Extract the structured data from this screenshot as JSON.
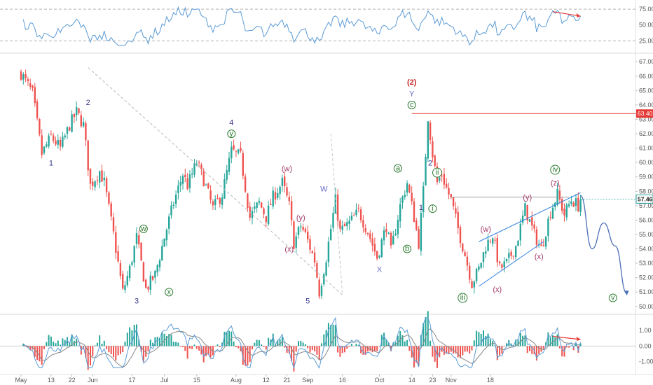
{
  "chart_data": [
    {
      "type": "line",
      "name": "rsi_panel",
      "y_ticks": [
        "75.00",
        "50.00",
        "25.00"
      ],
      "y_tick_values": [
        75,
        50,
        25
      ],
      "ylim": [
        10,
        85
      ],
      "reference_lines": [
        75,
        25
      ],
      "line_color": "#5b9bd5",
      "arrow_color": "#e53935"
    },
    {
      "type": "candlestick",
      "name": "price_panel",
      "ylim": [
        49.6,
        67.4
      ],
      "y_ticks": [
        "67.00",
        "66.00",
        "65.00",
        "64.00",
        "63.00",
        "62.00",
        "61.00",
        "60.00",
        "59.00",
        "58.00",
        "57.00",
        "56.00",
        "55.00",
        "54.00",
        "53.00",
        "52.00",
        "51.00",
        "50.00"
      ],
      "y_tick_values": [
        67,
        66,
        65,
        64,
        63,
        62,
        61,
        60,
        59,
        58,
        57,
        56,
        55,
        54,
        53,
        52,
        51,
        50
      ],
      "current_price_label": "57.46",
      "current_price": 57.46,
      "resistance_label": "63.40",
      "resistance_level": 63.4,
      "up_color": "#26a69a",
      "down_color": "#ef5350",
      "resistance_color": "#e53935",
      "channel_color": "#2f7fe0",
      "projection_color": "#4a6fb5",
      "price_path": [
        {
          "d": 0,
          "p": 66.2
        },
        {
          "d": 5,
          "p": 64.8
        },
        {
          "d": 9,
          "p": 60.6
        },
        {
          "d": 13,
          "p": 61.8
        },
        {
          "d": 17,
          "p": 61.0
        },
        {
          "d": 21,
          "p": 62.6
        },
        {
          "d": 24,
          "p": 63.5
        },
        {
          "d": 27,
          "p": 62.6
        },
        {
          "d": 30,
          "p": 58.4
        },
        {
          "d": 34,
          "p": 59.4
        },
        {
          "d": 36,
          "p": 58.6
        },
        {
          "d": 40,
          "p": 55.0
        },
        {
          "d": 44,
          "p": 51.0
        },
        {
          "d": 47,
          "p": 52.6
        },
        {
          "d": 50,
          "p": 54.8
        },
        {
          "d": 54,
          "p": 51.2
        },
        {
          "d": 58,
          "p": 52.2
        },
        {
          "d": 62,
          "p": 54.8
        },
        {
          "d": 66,
          "p": 57.2
        },
        {
          "d": 70,
          "p": 59.2
        },
        {
          "d": 72,
          "p": 58.4
        },
        {
          "d": 76,
          "p": 60.0
        },
        {
          "d": 79,
          "p": 58.8
        },
        {
          "d": 83,
          "p": 56.8
        },
        {
          "d": 87,
          "p": 57.8
        },
        {
          "d": 91,
          "p": 60.8
        },
        {
          "d": 95,
          "p": 60.4
        },
        {
          "d": 99,
          "p": 56.2
        },
        {
          "d": 103,
          "p": 57.2
        },
        {
          "d": 106,
          "p": 56.2
        },
        {
          "d": 109,
          "p": 57.6
        },
        {
          "d": 113,
          "p": 58.6
        },
        {
          "d": 116,
          "p": 57.0
        },
        {
          "d": 118,
          "p": 54.4
        },
        {
          "d": 121,
          "p": 55.6
        },
        {
          "d": 123,
          "p": 55.0
        },
        {
          "d": 127,
          "p": 53.2
        },
        {
          "d": 129,
          "p": 51.0
        },
        {
          "d": 132,
          "p": 53.4
        },
        {
          "d": 136,
          "p": 57.4
        },
        {
          "d": 138,
          "p": 55.2
        },
        {
          "d": 142,
          "p": 55.8
        },
        {
          "d": 146,
          "p": 56.6
        },
        {
          "d": 150,
          "p": 55.2
        },
        {
          "d": 154,
          "p": 53.4
        },
        {
          "d": 158,
          "p": 55.6
        },
        {
          "d": 160,
          "p": 53.8
        },
        {
          "d": 164,
          "p": 57.0
        },
        {
          "d": 167,
          "p": 58.6
        },
        {
          "d": 170,
          "p": 56.2
        },
        {
          "d": 172,
          "p": 54.4
        },
        {
          "d": 174,
          "p": 58.0
        },
        {
          "d": 176,
          "p": 63.2
        },
        {
          "d": 178,
          "p": 60.6
        },
        {
          "d": 180,
          "p": 58.6
        },
        {
          "d": 182,
          "p": 59.2
        },
        {
          "d": 184,
          "p": 58.2
        },
        {
          "d": 186,
          "p": 57.4
        },
        {
          "d": 189,
          "p": 55.4
        },
        {
          "d": 192,
          "p": 53.6
        },
        {
          "d": 195,
          "p": 51.6
        },
        {
          "d": 198,
          "p": 52.6
        },
        {
          "d": 201,
          "p": 54.2
        },
        {
          "d": 204,
          "p": 55.0
        },
        {
          "d": 207,
          "p": 52.6
        },
        {
          "d": 210,
          "p": 53.0
        },
        {
          "d": 214,
          "p": 54.2
        },
        {
          "d": 218,
          "p": 56.8
        },
        {
          "d": 222,
          "p": 55.0
        },
        {
          "d": 225,
          "p": 54.0
        },
        {
          "d": 229,
          "p": 56.6
        },
        {
          "d": 232,
          "p": 57.8
        },
        {
          "d": 235,
          "p": 56.4
        },
        {
          "d": 238,
          "p": 57.4
        },
        {
          "d": 241,
          "p": 57.0
        },
        {
          "d": 242,
          "p": 57.46
        }
      ],
      "projection_path": [
        {
          "d": 242,
          "p": 57.7
        },
        {
          "d": 247,
          "p": 54.0
        },
        {
          "d": 252,
          "p": 55.8
        },
        {
          "d": 257,
          "p": 54.2
        },
        {
          "d": 262,
          "p": 50.9
        }
      ],
      "channel_lower": [
        {
          "d": 198,
          "p": 51.4
        },
        {
          "d": 226,
          "p": 54.5
        }
      ],
      "channel_upper": [
        {
          "d": 198,
          "p": 54.5
        },
        {
          "d": 242,
          "p": 57.9
        }
      ],
      "diagonal_line": [
        {
          "d": 29,
          "p": 66.6
        },
        {
          "d": 139,
          "p": 50.8
        }
      ],
      "dashed_small_line": [
        {
          "d": 134,
          "p": 62.0
        },
        {
          "d": 139,
          "p": 50.8
        }
      ],
      "horizontal_grey_line": {
        "d0": 186,
        "d1": 237,
        "p": 57.6
      },
      "wave_labels": [
        {
          "text": "1",
          "style": "plain",
          "color": "#3a3a8c",
          "d": 13,
          "p": 59.8
        },
        {
          "text": "2",
          "style": "plain",
          "color": "#3a3a8c",
          "d": 29,
          "p": 64.0
        },
        {
          "text": "3",
          "style": "plain",
          "color": "#3a3a8c",
          "d": 50,
          "p": 50.2
        },
        {
          "text": "w",
          "style": "circle",
          "color": "#2e7d32",
          "d": 53,
          "p": 55.2
        },
        {
          "text": "x",
          "style": "circle",
          "color": "#2e7d32",
          "d": 64,
          "p": 50.8
        },
        {
          "text": "4",
          "style": "plain",
          "color": "#3a3a8c",
          "d": 91,
          "p": 62.6
        },
        {
          "text": "y",
          "style": "circle",
          "color": "#2e7d32",
          "d": 91,
          "p": 61.8
        },
        {
          "text": "(w)",
          "style": "plain",
          "color": "#a33a6a",
          "d": 115,
          "p": 59.4
        },
        {
          "text": "(y)",
          "style": "plain",
          "color": "#a33a6a",
          "d": 121,
          "p": 56.0
        },
        {
          "text": "(x)",
          "style": "plain",
          "color": "#a33a6a",
          "d": 116,
          "p": 53.8
        },
        {
          "text": "5",
          "style": "plain",
          "color": "#3a3a8c",
          "d": 124,
          "p": 50.2
        },
        {
          "text": "W",
          "style": "plain",
          "color": "#6a6ac8",
          "d": 131,
          "p": 58.0
        },
        {
          "text": "X",
          "style": "plain",
          "color": "#6a6ac8",
          "d": 155,
          "p": 52.4
        },
        {
          "text": "a",
          "style": "circle",
          "color": "#2e7d32",
          "d": 163,
          "p": 59.4
        },
        {
          "text": "b",
          "style": "circle",
          "color": "#2e7d32",
          "d": 167,
          "p": 53.8
        },
        {
          "text": "(2)",
          "style": "plain",
          "color": "#c62828",
          "d": 169,
          "p": 65.4
        },
        {
          "text": "Y",
          "style": "plain",
          "color": "#6a6ac8",
          "d": 169,
          "p": 64.6
        },
        {
          "text": "c",
          "style": "circle",
          "color": "#2e7d32",
          "d": 169,
          "p": 63.8
        },
        {
          "text": "1",
          "style": "plain",
          "color": "#3a3a8c",
          "d": 173,
          "p": 56.7
        },
        {
          "text": "2",
          "style": "plain",
          "color": "#3a3a8c",
          "d": 177,
          "p": 59.8
        },
        {
          "text": "ii",
          "style": "circle",
          "color": "#2e7d32",
          "d": 180,
          "p": 59.1
        },
        {
          "text": "i",
          "style": "circle",
          "color": "#2e7d32",
          "d": 178,
          "p": 56.6
        },
        {
          "text": "(w)",
          "style": "plain",
          "color": "#a33a6a",
          "d": 201,
          "p": 55.2
        },
        {
          "text": "iii",
          "style": "circle",
          "color": "#2e7d32",
          "d": 191,
          "p": 50.4
        },
        {
          "text": "(x)",
          "style": "plain",
          "color": "#a33a6a",
          "d": 206,
          "p": 51.0
        },
        {
          "text": "(y)",
          "style": "plain",
          "color": "#a33a6a",
          "d": 219,
          "p": 57.4
        },
        {
          "text": "(x)",
          "style": "plain",
          "color": "#a33a6a",
          "d": 224,
          "p": 53.3
        },
        {
          "text": "(z)",
          "style": "plain",
          "color": "#a33a6a",
          "d": 231,
          "p": 58.4
        },
        {
          "text": "iv",
          "style": "circle",
          "color": "#2e7d32",
          "d": 231,
          "p": 59.3
        },
        {
          "text": "v",
          "style": "circle",
          "color": "#2e7d32",
          "d": 256,
          "p": 50.4
        }
      ]
    },
    {
      "type": "line",
      "name": "oscillator_panel",
      "y_ticks": [
        "1.00",
        "0.00",
        "-1.00"
      ],
      "y_tick_values": [
        1,
        0,
        -1
      ],
      "ylim": [
        -1.6,
        1.9
      ],
      "fast_color": "#5b9bd5",
      "slow_color": "#888888",
      "hist_up": "#26a69a",
      "hist_down": "#ef5350"
    }
  ],
  "x_axis": {
    "labels": [
      "May",
      "13",
      "22",
      "Jun",
      "17",
      "Jul",
      "15",
      "Aug",
      "12",
      "21",
      "Sep",
      "16",
      "Oct",
      "14",
      "23",
      "Nov",
      "18"
    ],
    "label_days": [
      0,
      13,
      22,
      31,
      48,
      62,
      76,
      93,
      106,
      115,
      124,
      139,
      155,
      169,
      178,
      186,
      203
    ]
  }
}
